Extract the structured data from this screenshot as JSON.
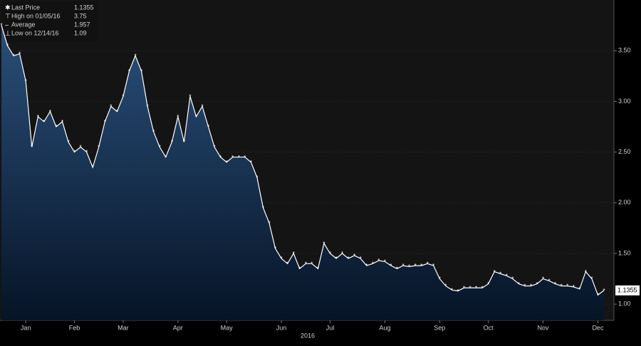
{
  "chart_data": {
    "type": "area",
    "x_axis_label": "2016",
    "categories": [
      null,
      null,
      null,
      null,
      "Jan",
      null,
      null,
      null,
      null,
      null,
      null,
      null,
      "Feb",
      null,
      null,
      null,
      null,
      null,
      null,
      null,
      "Mar",
      null,
      null,
      null,
      null,
      null,
      null,
      null,
      null,
      "Apr",
      null,
      null,
      null,
      null,
      null,
      null,
      null,
      "May",
      null,
      null,
      null,
      null,
      null,
      null,
      null,
      null,
      "Jun",
      null,
      null,
      null,
      null,
      null,
      null,
      null,
      "Jul",
      null,
      null,
      null,
      null,
      null,
      null,
      null,
      null,
      "Aug",
      null,
      null,
      null,
      null,
      null,
      null,
      null,
      null,
      "Sep",
      null,
      null,
      null,
      null,
      null,
      null,
      null,
      "Oct",
      null,
      null,
      null,
      null,
      null,
      null,
      null,
      null,
      "Nov",
      null,
      null,
      null,
      null,
      null,
      null,
      null,
      null,
      "Dec",
      null
    ],
    "series": [
      {
        "name": "Last Price",
        "color": "#ffffff",
        "values": [
          3.75,
          3.55,
          3.45,
          3.47,
          3.2,
          2.55,
          2.85,
          2.8,
          2.9,
          2.75,
          2.8,
          2.6,
          2.5,
          2.55,
          2.5,
          2.35,
          2.55,
          2.8,
          2.95,
          2.9,
          3.05,
          3.3,
          3.45,
          3.3,
          2.95,
          2.7,
          2.55,
          2.45,
          2.6,
          2.85,
          2.6,
          3.05,
          2.85,
          2.95,
          2.75,
          2.55,
          2.45,
          2.4,
          2.45,
          2.45,
          2.45,
          2.4,
          2.25,
          1.95,
          1.8,
          1.55,
          1.45,
          1.4,
          1.5,
          1.35,
          1.4,
          1.4,
          1.35,
          1.6,
          1.5,
          1.45,
          1.5,
          1.45,
          1.48,
          1.45,
          1.38,
          1.4,
          1.43,
          1.42,
          1.38,
          1.35,
          1.38,
          1.37,
          1.38,
          1.38,
          1.4,
          1.38,
          1.25,
          1.18,
          1.14,
          1.13,
          1.16,
          1.16,
          1.16,
          1.16,
          1.2,
          1.32,
          1.3,
          1.28,
          1.25,
          1.2,
          1.18,
          1.18,
          1.2,
          1.25,
          1.23,
          1.2,
          1.18,
          1.18,
          1.17,
          1.15,
          1.32,
          1.25,
          1.09,
          1.1355
        ]
      }
    ],
    "legend": [
      {
        "label": "Last Price",
        "value": 1.1355
      },
      {
        "label": "High on 01/05/16",
        "value": 3.75
      },
      {
        "label": "Average",
        "value": 1.957
      },
      {
        "label": "Low on 12/14/16",
        "value": 1.09
      }
    ],
    "area_color": "#1b3a60",
    "ylim": [
      0.84,
      4.0
    ],
    "yticks": [
      {
        "value": 1,
        "label": "1.00"
      },
      {
        "value": 1.5,
        "label": "1.50"
      },
      {
        "value": 2,
        "label": "2.00"
      },
      {
        "value": 2.5,
        "label": "2.50"
      },
      {
        "value": 3,
        "label": "3.00"
      },
      {
        "value": 3.5,
        "label": "3.50"
      }
    ],
    "grid": true
  }
}
